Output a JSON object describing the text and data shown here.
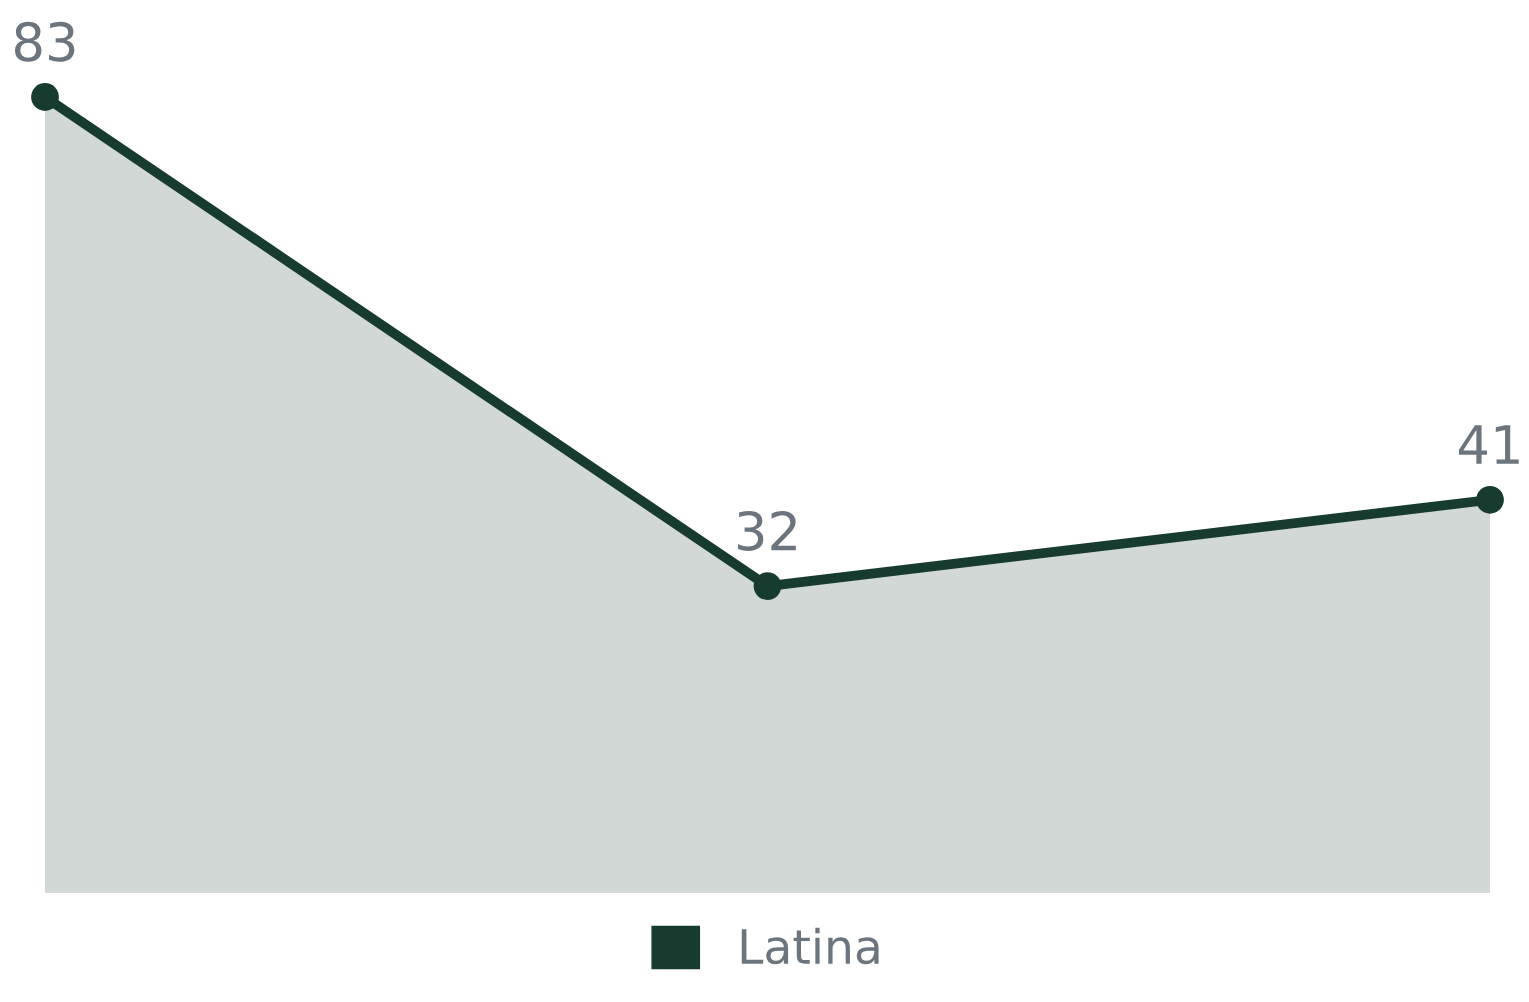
{
  "chart_data": {
    "type": "area",
    "categories": [
      null,
      null,
      null
    ],
    "series": [
      {
        "name": "Latina",
        "color": "#173b2e",
        "values": [
          83,
          32,
          41
        ]
      }
    ],
    "data_labels": true,
    "legend": "bottom",
    "marker": "circle",
    "grid": false
  }
}
